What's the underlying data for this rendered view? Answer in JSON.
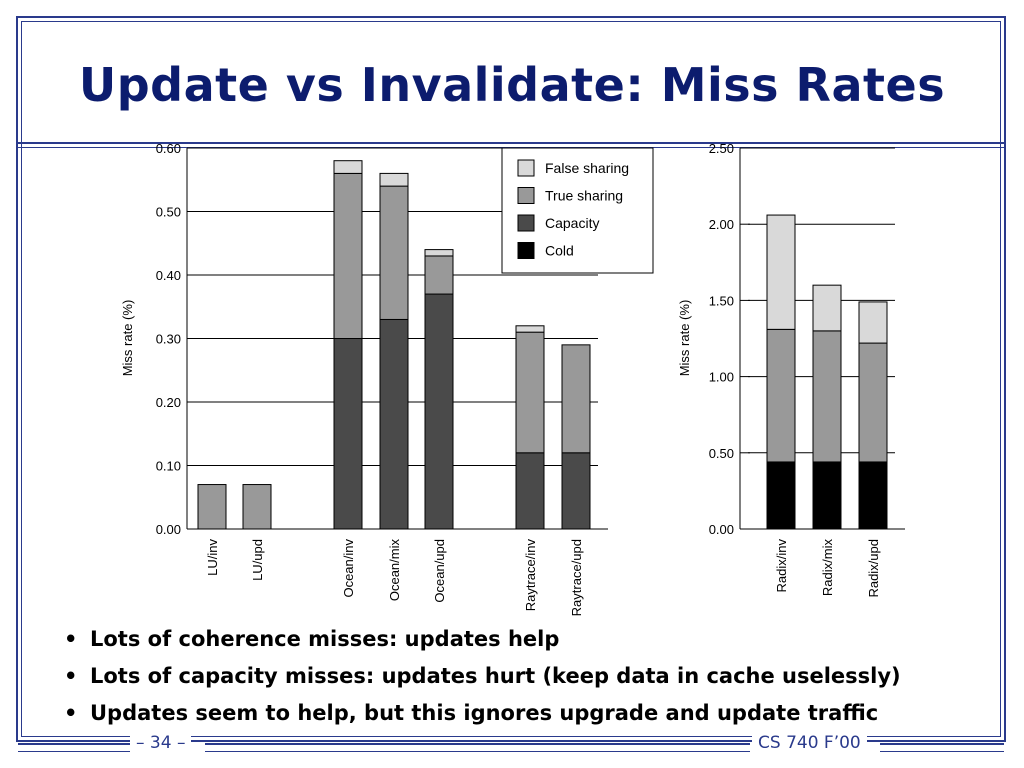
{
  "title": "Update vs Invalidate: Miss Rates",
  "colors": {
    "Cold": "#000000",
    "Capacity": "#4a4a4a",
    "True sharing": "#999999",
    "False sharing": "#d9d9d9",
    "frame": "#2a3a8c",
    "title": "#0c1c6e"
  },
  "chart_data": [
    {
      "type": "bar",
      "stacked": true,
      "title": "",
      "xlabel": "",
      "ylabel": "Miss rate (%)",
      "ylim": [
        0,
        0.6
      ],
      "yticks": [
        "0.00",
        "0.10",
        "0.20",
        "0.30",
        "0.40",
        "0.50",
        "0.60"
      ],
      "grid": true,
      "legend_position": "top-right",
      "legend": [
        "False sharing",
        "True sharing",
        "Capacity",
        "Cold"
      ],
      "categories": [
        "LU/inv",
        "LU/upd",
        "Ocean/inv",
        "Ocean/mix",
        "Ocean/upd",
        "Raytrace/inv",
        "Raytrace/upd"
      ],
      "series": [
        {
          "name": "Cold",
          "values": [
            0,
            0,
            0,
            0,
            0,
            0,
            0
          ]
        },
        {
          "name": "Capacity",
          "values": [
            0,
            0,
            0.3,
            0.33,
            0.37,
            0.12,
            0.12
          ]
        },
        {
          "name": "True sharing",
          "values": [
            0.07,
            0.07,
            0.26,
            0.21,
            0.06,
            0.19,
            0.17
          ]
        },
        {
          "name": "False sharing",
          "values": [
            0,
            0,
            0.02,
            0.02,
            0.01,
            0.01,
            0
          ]
        }
      ]
    },
    {
      "type": "bar",
      "stacked": true,
      "title": "",
      "xlabel": "",
      "ylabel": "Miss rate (%)",
      "ylim": [
        0,
        2.5
      ],
      "yticks": [
        "0.00",
        "0.50",
        "1.00",
        "1.50",
        "2.00",
        "2.50"
      ],
      "grid": true,
      "categories": [
        "Radix/inv",
        "Radix/mix",
        "Radix/upd"
      ],
      "series": [
        {
          "name": "Cold",
          "values": [
            0.44,
            0.44,
            0.44
          ]
        },
        {
          "name": "Capacity",
          "values": [
            0,
            0,
            0
          ]
        },
        {
          "name": "True sharing",
          "values": [
            0.87,
            0.86,
            0.78
          ]
        },
        {
          "name": "False sharing",
          "values": [
            0.75,
            0.3,
            0.27
          ]
        }
      ]
    }
  ],
  "bullets": [
    "Lots of coherence misses: updates help",
    "Lots of capacity misses: updates hurt (keep data in cache uselessly)",
    "Updates seem to help, but this ignores upgrade and update traffic"
  ],
  "footer": {
    "page": "– 34 –",
    "course": "CS 740 F’00"
  }
}
